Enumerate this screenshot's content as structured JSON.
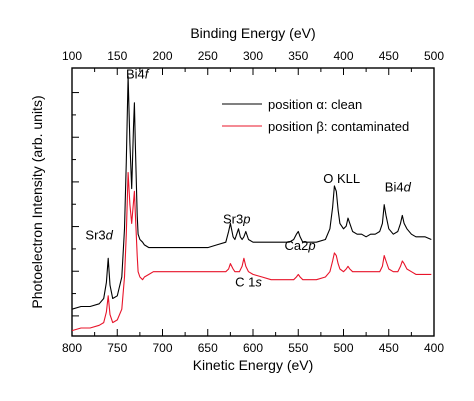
{
  "chart_data": {
    "type": "line",
    "title": "",
    "xlabel": "Kinetic Energy (eV)",
    "x2label": "Binding Energy (eV)",
    "ylabel": "Photoelectron Intensity (arb. units)",
    "xlim": [
      800,
      400
    ],
    "x_ticks": [
      "800",
      "750",
      "700",
      "650",
      "600",
      "550",
      "500",
      "450",
      "400"
    ],
    "x2_ticks": [
      "100",
      "150",
      "200",
      "250",
      "300",
      "350",
      "400",
      "450",
      "500"
    ],
    "y_ticks_count": 6,
    "grid": false,
    "legend_position": "top-right",
    "annotations": [
      {
        "text": "Bi4f",
        "x": 728,
        "y": 0.96
      },
      {
        "text": "Sr3d",
        "x": 770,
        "y": 0.36
      },
      {
        "text": "Sr3p",
        "x": 618,
        "y": 0.42
      },
      {
        "text": "Ca2p",
        "x": 548,
        "y": 0.32
      },
      {
        "text": "O KLL",
        "x": 502,
        "y": 0.57
      },
      {
        "text": "Bi4d",
        "x": 440,
        "y": 0.54
      },
      {
        "text": "C 1s",
        "x": 605,
        "y": 0.185
      }
    ],
    "series": [
      {
        "name": "position α: clean",
        "color": "#000000",
        "x": [
          800,
          790,
          780,
          770,
          765,
          762,
          760,
          758,
          755,
          750,
          745,
          742,
          740,
          738,
          736,
          734,
          732,
          731,
          730,
          728,
          727,
          725,
          722,
          720,
          715,
          710,
          700,
          690,
          680,
          670,
          660,
          650,
          640,
          630,
          627,
          625,
          622,
          620,
          618,
          616,
          614,
          612,
          610,
          608,
          605,
          600,
          590,
          580,
          570,
          560,
          555,
          552,
          550,
          548,
          545,
          540,
          530,
          520,
          515,
          512,
          510,
          508,
          506,
          504,
          500,
          497,
          495,
          493,
          490,
          485,
          480,
          475,
          470,
          465,
          460,
          457,
          455,
          453,
          450,
          445,
          440,
          437,
          435,
          433,
          430,
          425,
          420,
          410,
          403
        ],
        "y": [
          0.1,
          0.11,
          0.11,
          0.12,
          0.14,
          0.2,
          0.29,
          0.19,
          0.14,
          0.15,
          0.22,
          0.4,
          0.65,
          0.97,
          0.72,
          0.55,
          0.78,
          0.87,
          0.72,
          0.45,
          0.38,
          0.36,
          0.35,
          0.34,
          0.33,
          0.33,
          0.33,
          0.33,
          0.33,
          0.33,
          0.33,
          0.33,
          0.34,
          0.35,
          0.39,
          0.42,
          0.37,
          0.36,
          0.38,
          0.4,
          0.37,
          0.36,
          0.37,
          0.39,
          0.36,
          0.35,
          0.35,
          0.35,
          0.35,
          0.35,
          0.36,
          0.38,
          0.39,
          0.37,
          0.35,
          0.35,
          0.35,
          0.36,
          0.4,
          0.48,
          0.56,
          0.54,
          0.47,
          0.42,
          0.4,
          0.41,
          0.44,
          0.42,
          0.39,
          0.38,
          0.38,
          0.37,
          0.38,
          0.38,
          0.39,
          0.42,
          0.49,
          0.45,
          0.4,
          0.38,
          0.39,
          0.42,
          0.45,
          0.42,
          0.4,
          0.38,
          0.37,
          0.37,
          0.36
        ]
      },
      {
        "name": "position β: contaminated",
        "color": "#e8142a",
        "x": [
          800,
          790,
          780,
          770,
          765,
          762,
          760,
          758,
          755,
          750,
          745,
          742,
          740,
          738,
          736,
          734,
          732,
          731,
          730,
          728,
          727,
          725,
          722,
          720,
          715,
          710,
          700,
          690,
          680,
          670,
          660,
          650,
          640,
          630,
          627,
          625,
          622,
          620,
          615,
          612,
          610,
          608,
          605,
          600,
          590,
          580,
          570,
          560,
          555,
          552,
          550,
          548,
          545,
          540,
          530,
          520,
          515,
          512,
          510,
          508,
          506,
          504,
          500,
          497,
          495,
          493,
          490,
          485,
          480,
          475,
          470,
          465,
          460,
          457,
          455,
          453,
          450,
          445,
          440,
          437,
          435,
          433,
          430,
          425,
          420,
          410,
          403
        ],
        "y": [
          0.02,
          0.03,
          0.03,
          0.04,
          0.05,
          0.09,
          0.15,
          0.08,
          0.05,
          0.06,
          0.1,
          0.22,
          0.38,
          0.61,
          0.49,
          0.42,
          0.5,
          0.54,
          0.46,
          0.3,
          0.24,
          0.22,
          0.21,
          0.22,
          0.23,
          0.24,
          0.24,
          0.24,
          0.24,
          0.24,
          0.24,
          0.24,
          0.24,
          0.24,
          0.25,
          0.27,
          0.25,
          0.24,
          0.24,
          0.26,
          0.29,
          0.26,
          0.24,
          0.23,
          0.22,
          0.21,
          0.21,
          0.21,
          0.21,
          0.22,
          0.23,
          0.22,
          0.21,
          0.21,
          0.21,
          0.22,
          0.24,
          0.28,
          0.31,
          0.3,
          0.27,
          0.25,
          0.24,
          0.25,
          0.26,
          0.25,
          0.24,
          0.24,
          0.24,
          0.24,
          0.24,
          0.24,
          0.24,
          0.26,
          0.3,
          0.28,
          0.25,
          0.24,
          0.24,
          0.26,
          0.28,
          0.27,
          0.25,
          0.24,
          0.23,
          0.23,
          0.23
        ]
      }
    ]
  }
}
